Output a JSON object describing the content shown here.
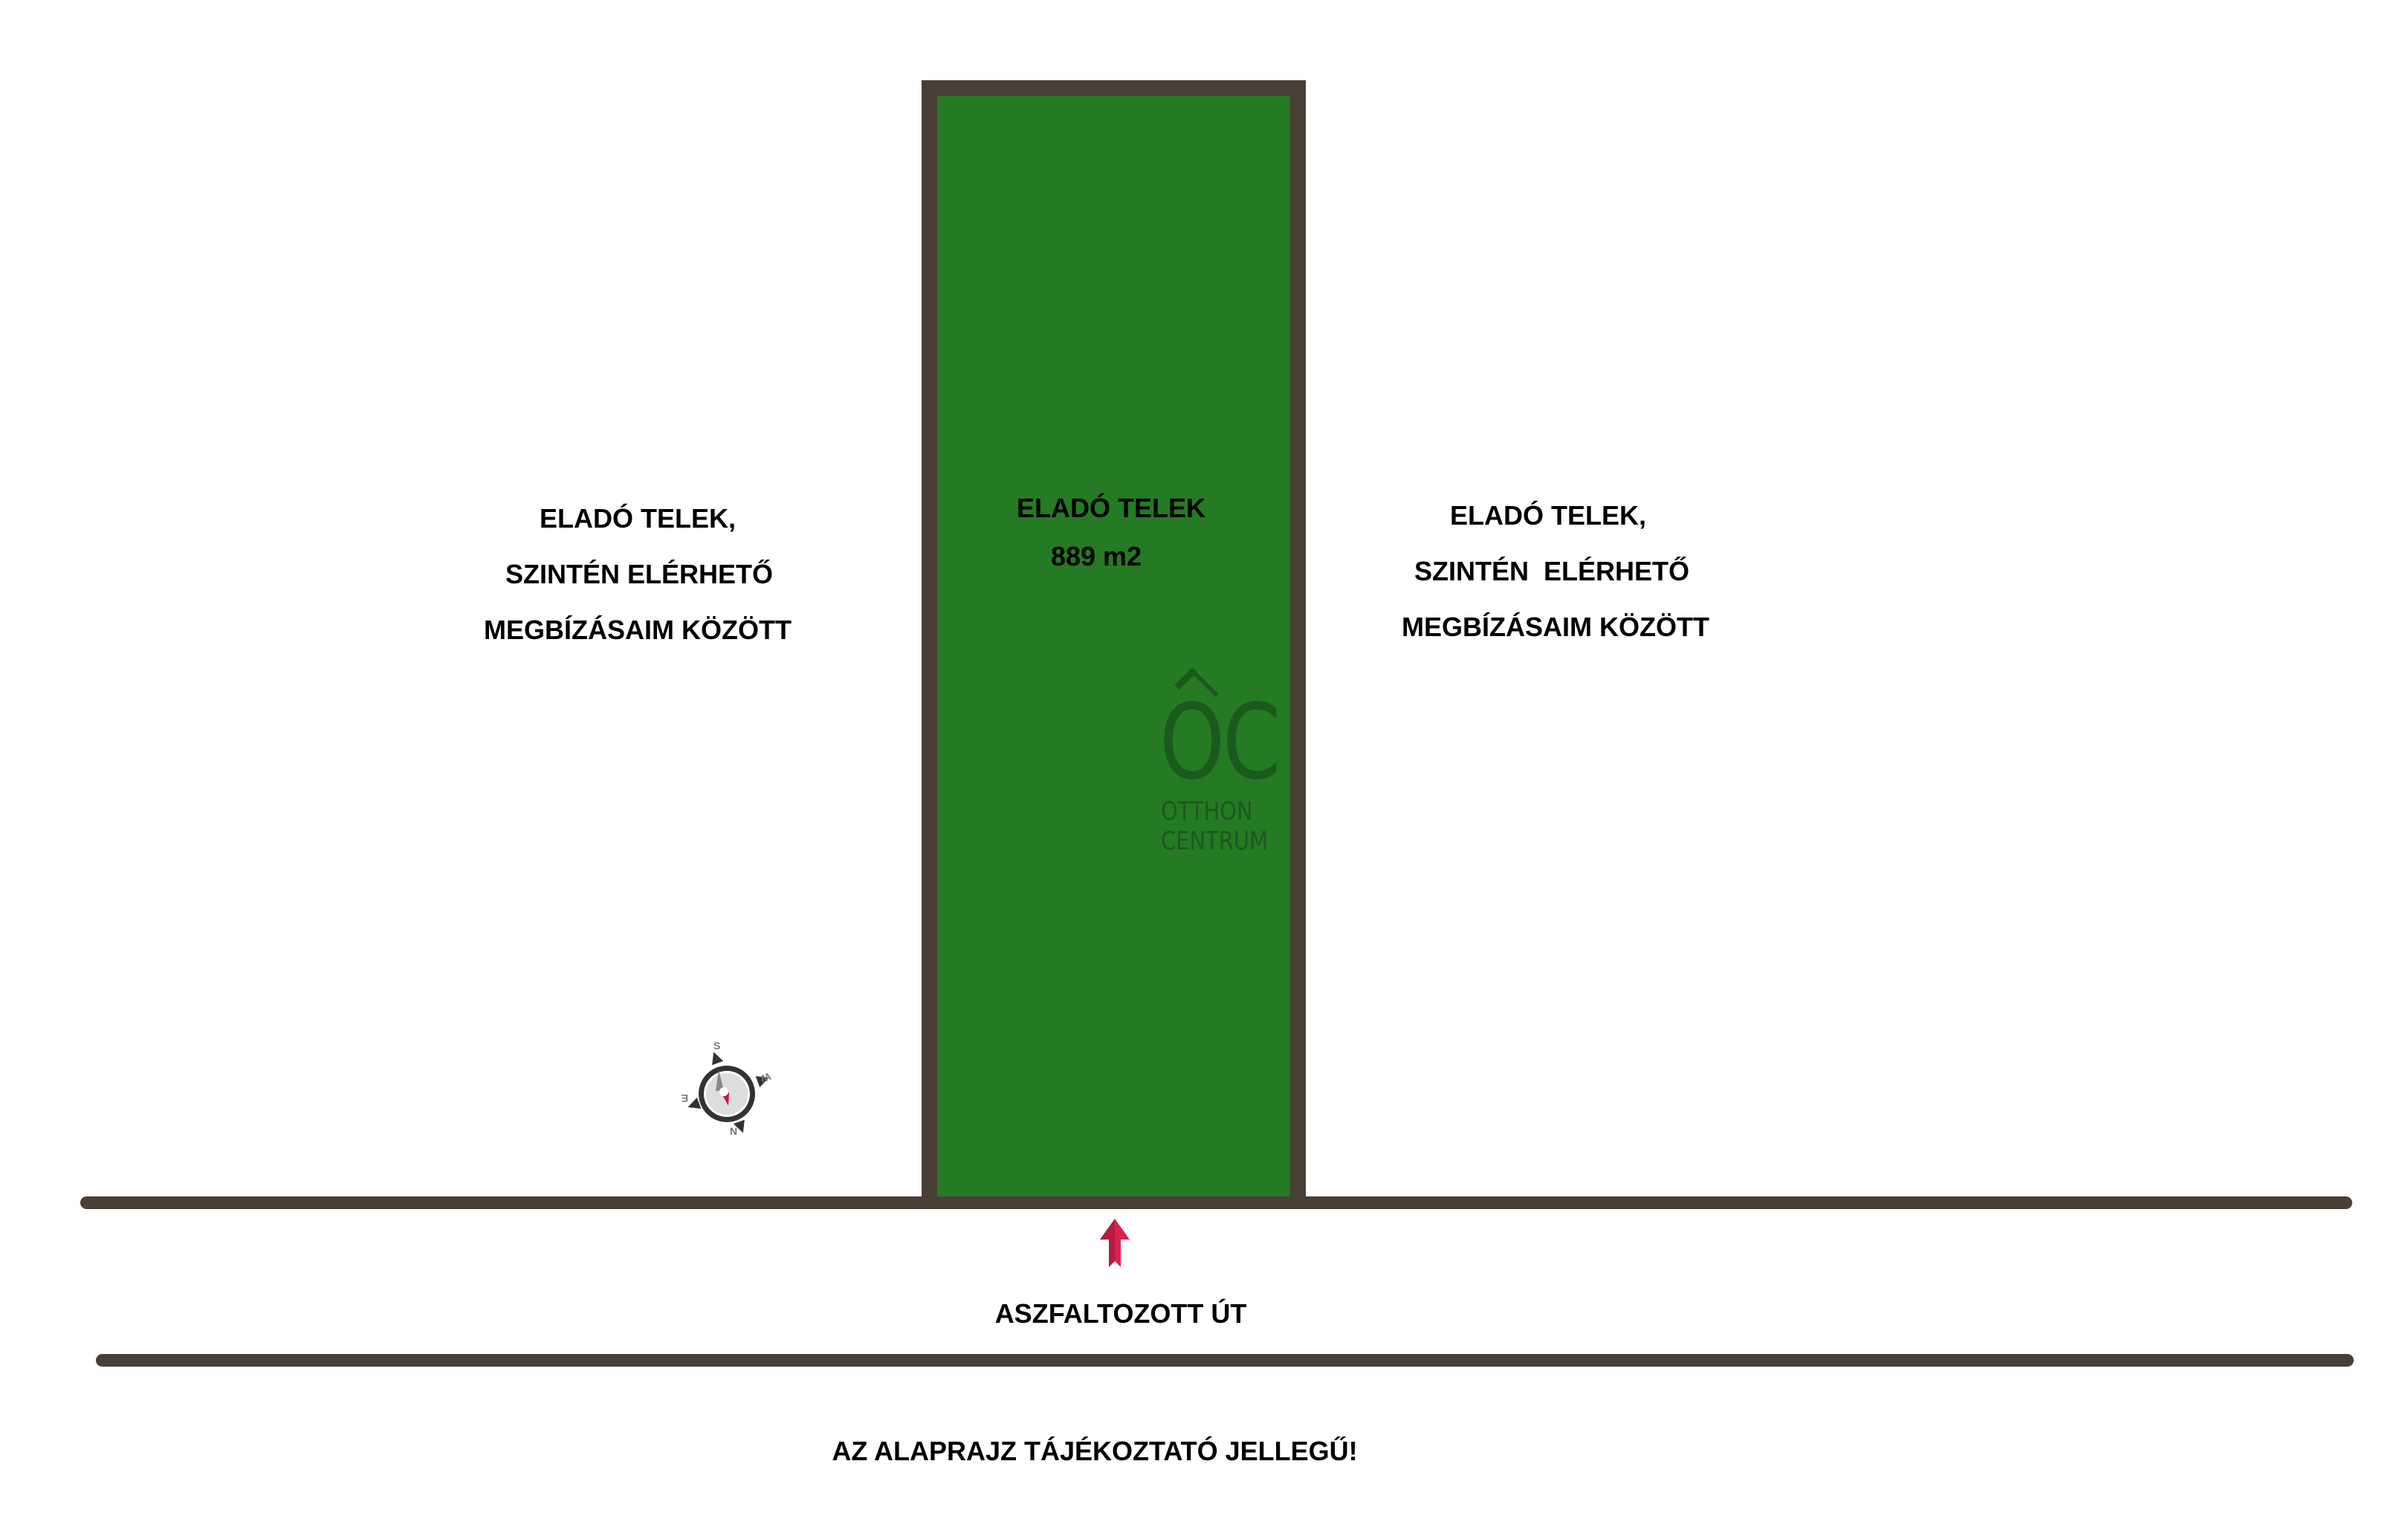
{
  "plot": {
    "title": "ELADÓ TELEK",
    "area": "889 m2",
    "fill_color": "#257a24",
    "border_color": "#4a3e36"
  },
  "left_plot": {
    "lines": [
      "ELADÓ TELEK,",
      "SZINTÉN ELÉRHETŐ",
      "MEGBÍZÁSAIM KÖZÖTT"
    ]
  },
  "right_plot": {
    "lines": [
      "ELADÓ TELEK,",
      "SZINTÉN  ELÉRHETŐ",
      "MEGBÍZÁSAIM KÖZÖTT"
    ]
  },
  "road": {
    "label": "ASZFALTOZOTT ÚT",
    "color": "#4a3e36"
  },
  "disclaimer": "AZ ALAPRAJZ TÁJÉKOZTATÓ JELLEGŰ!",
  "compass": {
    "labels": {
      "n": "N",
      "s": "S",
      "e": "E",
      "w": "W"
    },
    "needle_color": "#d0134a"
  },
  "entrance_arrow": {
    "icon": "arrow-up-icon",
    "color": "#d9234f"
  },
  "logo": {
    "monogram": "OC",
    "line1": "OTTHON",
    "line2": "CENTRUM"
  }
}
